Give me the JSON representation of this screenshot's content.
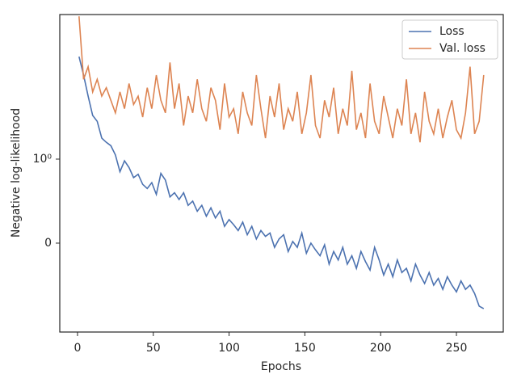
{
  "chart_data": {
    "type": "line",
    "xlabel": "Epochs",
    "ylabel": "Negative log-likelihood",
    "x": [
      1,
      4,
      7,
      10,
      13,
      16,
      19,
      22,
      25,
      28,
      31,
      34,
      37,
      40,
      43,
      46,
      49,
      52,
      55,
      58,
      61,
      64,
      67,
      70,
      73,
      76,
      79,
      82,
      85,
      88,
      91,
      94,
      97,
      100,
      103,
      106,
      109,
      112,
      115,
      118,
      121,
      124,
      127,
      130,
      133,
      136,
      139,
      142,
      145,
      148,
      151,
      154,
      157,
      160,
      163,
      166,
      169,
      172,
      175,
      178,
      181,
      184,
      187,
      190,
      193,
      196,
      199,
      202,
      205,
      208,
      211,
      214,
      217,
      220,
      223,
      226,
      229,
      232,
      235,
      238,
      241,
      244,
      247,
      250,
      253,
      256,
      259,
      262,
      265,
      268
    ],
    "series": [
      {
        "name": "Loss",
        "color": "#4c72b0",
        "values": [
          2.22,
          2.0,
          1.75,
          1.52,
          1.45,
          1.25,
          1.2,
          1.16,
          1.05,
          0.85,
          0.98,
          0.9,
          0.78,
          0.82,
          0.7,
          0.65,
          0.72,
          0.58,
          0.83,
          0.75,
          0.55,
          0.6,
          0.52,
          0.6,
          0.45,
          0.5,
          0.38,
          0.45,
          0.32,
          0.42,
          0.3,
          0.38,
          0.2,
          0.28,
          0.22,
          0.15,
          0.25,
          0.1,
          0.2,
          0.05,
          0.15,
          0.08,
          0.12,
          -0.05,
          0.05,
          0.1,
          -0.1,
          0.02,
          -0.05,
          0.12,
          -0.12,
          0.0,
          -0.08,
          -0.15,
          -0.02,
          -0.25,
          -0.1,
          -0.2,
          -0.05,
          -0.25,
          -0.15,
          -0.3,
          -0.1,
          -0.22,
          -0.32,
          -0.05,
          -0.2,
          -0.38,
          -0.25,
          -0.4,
          -0.2,
          -0.35,
          -0.3,
          -0.45,
          -0.25,
          -0.38,
          -0.48,
          -0.35,
          -0.5,
          -0.42,
          -0.55,
          -0.4,
          -0.5,
          -0.58,
          -0.45,
          -0.55,
          -0.5,
          -0.6,
          -0.75,
          -0.78
        ]
      },
      {
        "name": "Val. loss",
        "color": "#dd8452",
        "values": [
          2.7,
          1.95,
          2.1,
          1.8,
          1.95,
          1.75,
          1.85,
          1.7,
          1.55,
          1.8,
          1.6,
          1.9,
          1.65,
          1.75,
          1.5,
          1.85,
          1.6,
          2.0,
          1.7,
          1.55,
          2.15,
          1.6,
          1.9,
          1.4,
          1.75,
          1.55,
          1.95,
          1.6,
          1.45,
          1.85,
          1.7,
          1.35,
          1.9,
          1.5,
          1.6,
          1.3,
          1.8,
          1.55,
          1.4,
          2.0,
          1.6,
          1.25,
          1.75,
          1.5,
          1.9,
          1.35,
          1.6,
          1.45,
          1.8,
          1.3,
          1.55,
          2.0,
          1.4,
          1.25,
          1.7,
          1.5,
          1.85,
          1.3,
          1.6,
          1.4,
          2.05,
          1.35,
          1.55,
          1.25,
          1.9,
          1.45,
          1.3,
          1.75,
          1.5,
          1.25,
          1.6,
          1.4,
          1.95,
          1.3,
          1.55,
          1.2,
          1.8,
          1.45,
          1.3,
          1.6,
          1.25,
          1.5,
          1.7,
          1.35,
          1.25,
          1.55,
          2.1,
          1.3,
          1.45,
          2.0
        ]
      }
    ],
    "xlim": [
      -11.7,
      280.9
    ],
    "xticks": [
      0,
      50,
      100,
      150,
      200,
      250
    ],
    "ylim": [
      -1.058,
      2.721
    ],
    "yticks": [
      0,
      {
        "value": 1,
        "label": "10⁰"
      }
    ],
    "legend": "upper right"
  }
}
